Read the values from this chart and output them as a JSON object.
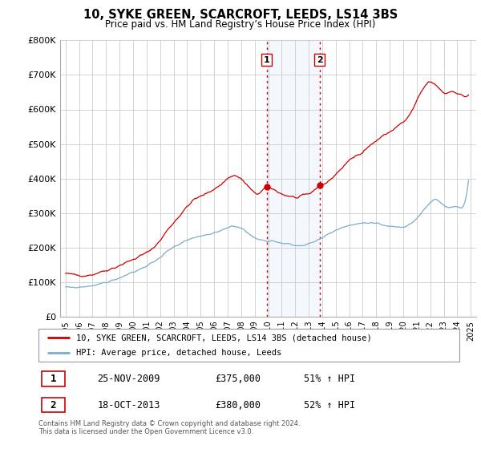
{
  "title": "10, SYKE GREEN, SCARCROFT, LEEDS, LS14 3BS",
  "subtitle": "Price paid vs. HM Land Registry’s House Price Index (HPI)",
  "ylim": [
    0,
    800000
  ],
  "yticks": [
    0,
    100000,
    200000,
    300000,
    400000,
    500000,
    600000,
    700000,
    800000
  ],
  "ytick_labels": [
    "£0",
    "£100K",
    "£200K",
    "£300K",
    "£400K",
    "£500K",
    "£600K",
    "£700K",
    "£800K"
  ],
  "red_color": "#cc0000",
  "blue_color": "#7aadcb",
  "vline_color": "#cc0000",
  "sale1_year": 2009.9,
  "sale2_year": 2013.8,
  "sale1_price": 375000,
  "sale2_price": 380000,
  "legend_red": "10, SYKE GREEN, SCARCROFT, LEEDS, LS14 3BS (detached house)",
  "legend_blue": "HPI: Average price, detached house, Leeds",
  "table_row1": [
    "1",
    "25-NOV-2009",
    "£375,000",
    "51% ↑ HPI"
  ],
  "table_row2": [
    "2",
    "18-OCT-2013",
    "£380,000",
    "52% ↑ HPI"
  ],
  "footer": "Contains HM Land Registry data © Crown copyright and database right 2024.\nThis data is licensed under the Open Government Licence v3.0.",
  "background_color": "#ffffff",
  "grid_color": "#cccccc"
}
